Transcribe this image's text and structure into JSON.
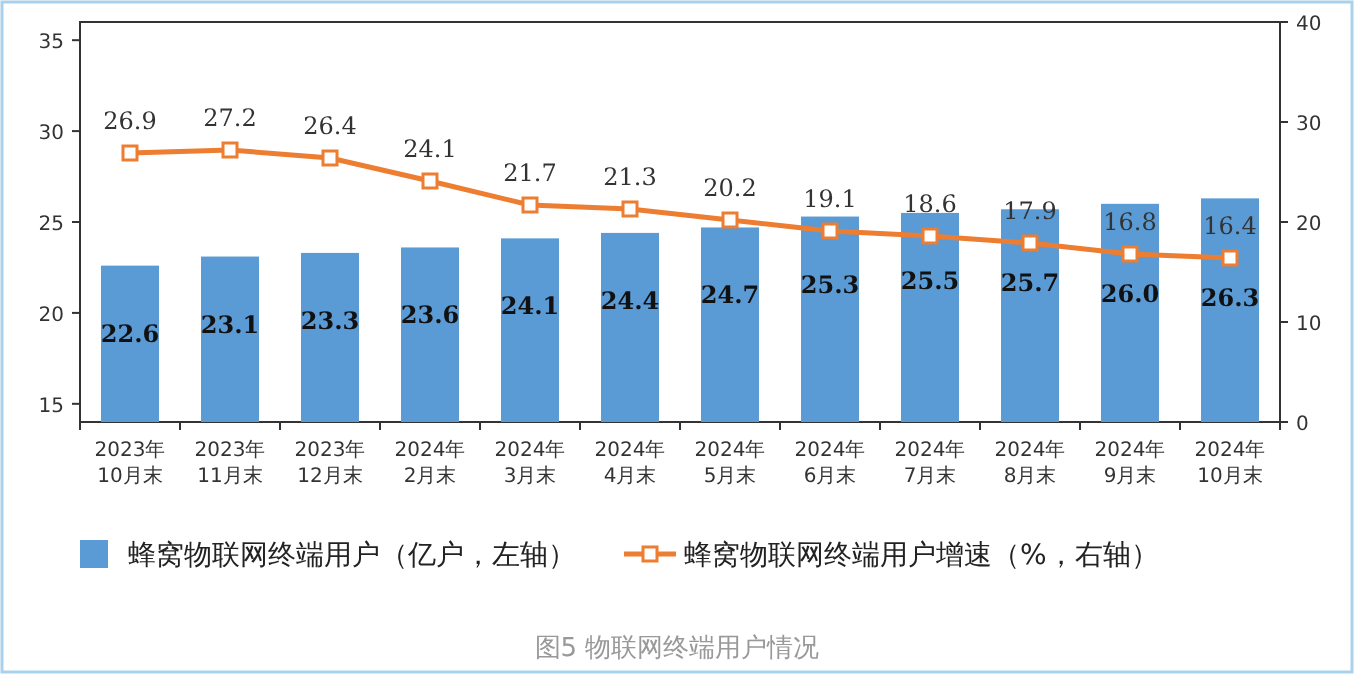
{
  "chart_data": {
    "type": "bar",
    "title": "图5 物联网终端用户情况",
    "categories": [
      "2023年\n10月末",
      "2023年\n11月末",
      "2023年\n12月末",
      "2024年\n2月末",
      "2024年\n3月末",
      "2024年\n4月末",
      "2024年\n5月末",
      "2024年\n6月末",
      "2024年\n7月末",
      "2024年\n8月末",
      "2024年\n9月末",
      "2024年\n10月末"
    ],
    "series": [
      {
        "name": "蜂窝物联网终端用户（亿户，左轴）",
        "color": "#5b9bd5",
        "values": [
          22.6,
          23.1,
          23.3,
          23.6,
          24.1,
          24.4,
          24.7,
          25.3,
          25.5,
          25.7,
          26.0,
          26.3
        ],
        "value_labels": [
          "22.6",
          "23.1",
          "23.3",
          "23.6",
          "24.1",
          "24.4",
          "24.7",
          "25.3",
          "25.5",
          "25.7",
          "26.0",
          "26.3"
        ]
      },
      {
        "name": "蜂窝物联网终端用户增速（%，右轴）",
        "type": "line",
        "axis": "y2",
        "marker": "square",
        "color": "#ed7d31",
        "values": [
          26.9,
          27.2,
          26.4,
          24.1,
          21.7,
          21.3,
          20.2,
          19.1,
          18.6,
          17.9,
          16.8,
          16.4
        ]
      }
    ],
    "ylim": [
      14,
      36
    ],
    "yticks": [
      15,
      20,
      25,
      30,
      35
    ],
    "y2lim": [
      0,
      40
    ],
    "y2ticks": [
      0,
      10,
      20,
      30,
      40
    ],
    "data_labels": true,
    "legend": "bottom",
    "grid": false
  }
}
